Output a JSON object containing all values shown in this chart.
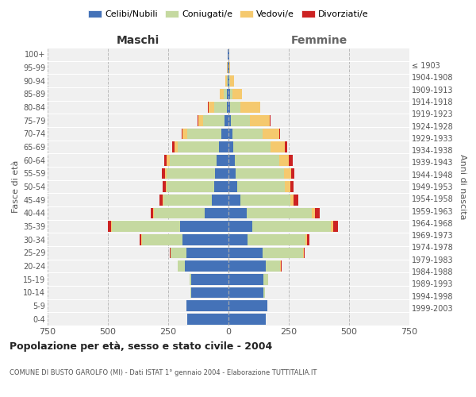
{
  "age_groups": [
    "0-4",
    "5-9",
    "10-14",
    "15-19",
    "20-24",
    "25-29",
    "30-34",
    "35-39",
    "40-44",
    "45-49",
    "50-54",
    "55-59",
    "60-64",
    "65-69",
    "70-74",
    "75-79",
    "80-84",
    "85-89",
    "90-94",
    "95-99",
    "100+"
  ],
  "birth_years": [
    "1999-2003",
    "1994-1998",
    "1989-1993",
    "1984-1988",
    "1979-1983",
    "1974-1978",
    "1969-1973",
    "1964-1968",
    "1959-1963",
    "1954-1958",
    "1949-1953",
    "1944-1948",
    "1939-1943",
    "1934-1938",
    "1929-1933",
    "1924-1928",
    "1919-1923",
    "1914-1918",
    "1909-1913",
    "1904-1908",
    "≤ 1903"
  ],
  "colors": {
    "celibe": "#4472b8",
    "coniugato": "#c5d9a0",
    "vedovo": "#f5c96e",
    "divorziato": "#cc2222"
  },
  "males": {
    "celibe": [
      170,
      175,
      155,
      155,
      180,
      175,
      190,
      200,
      100,
      70,
      60,
      55,
      50,
      40,
      30,
      15,
      8,
      5,
      3,
      2,
      2
    ],
    "coniugato": [
      0,
      0,
      2,
      5,
      30,
      65,
      170,
      285,
      210,
      200,
      195,
      200,
      195,
      170,
      140,
      90,
      50,
      15,
      5,
      2,
      0
    ],
    "vedovo": [
      0,
      0,
      0,
      0,
      0,
      0,
      1,
      2,
      2,
      3,
      5,
      8,
      10,
      15,
      20,
      20,
      25,
      15,
      5,
      2,
      0
    ],
    "divorziato": [
      0,
      0,
      0,
      0,
      2,
      3,
      8,
      12,
      12,
      12,
      12,
      12,
      12,
      10,
      5,
      3,
      2,
      0,
      0,
      0,
      0
    ]
  },
  "females": {
    "nubile": [
      155,
      160,
      145,
      145,
      155,
      140,
      80,
      100,
      75,
      50,
      35,
      30,
      25,
      20,
      15,
      10,
      5,
      5,
      3,
      2,
      2
    ],
    "coniugata": [
      0,
      0,
      5,
      20,
      60,
      170,
      240,
      325,
      270,
      205,
      200,
      200,
      185,
      155,
      125,
      80,
      45,
      10,
      5,
      2,
      0
    ],
    "vedova": [
      0,
      0,
      0,
      0,
      2,
      2,
      5,
      10,
      12,
      15,
      20,
      30,
      40,
      60,
      70,
      80,
      80,
      40,
      15,
      3,
      0
    ],
    "divorziata": [
      0,
      0,
      0,
      0,
      3,
      5,
      12,
      18,
      20,
      20,
      15,
      12,
      15,
      10,
      5,
      3,
      2,
      0,
      0,
      0,
      0
    ]
  },
  "title": "Popolazione per età, sesso e stato civile - 2004",
  "subtitle": "COMUNE DI BUSTO GAROLFO (MI) - Dati ISTAT 1° gennaio 2004 - Elaborazione TUTTITALIA.IT",
  "xlabel_left": "Maschi",
  "xlabel_right": "Femmine",
  "ylabel_left": "Fasce di età",
  "ylabel_right": "Anni di nascita",
  "xlim": 750,
  "bg_color": "#f0f0f0",
  "grid_color": "#bbbbbb",
  "legend_labels": [
    "Celibi/Nubili",
    "Coniugati/e",
    "Vedovi/e",
    "Divorziati/e"
  ]
}
